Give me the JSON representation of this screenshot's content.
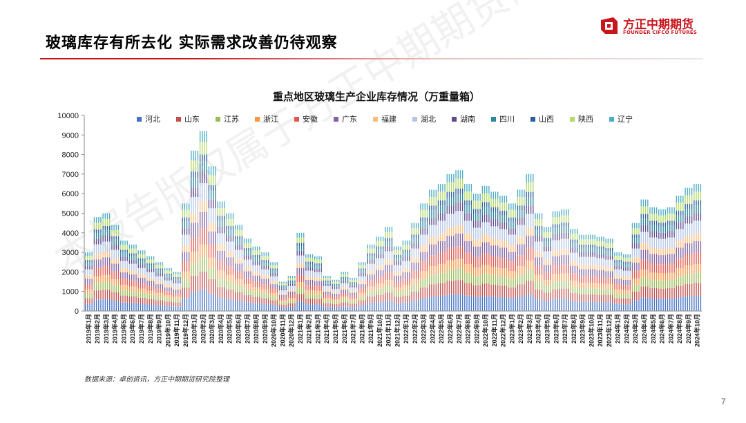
{
  "slide": {
    "title": "玻璃库存有所去化 实际需求改善仍待观察",
    "page_number": "7",
    "source": "数据来源：卓创资讯，方正中期期货研究院整理",
    "watermark": "本报告版权属于方正中期期货研究院所有"
  },
  "logo": {
    "name": "方正中期期货",
    "subtitle": "FOUNDER CIFCO FUTURES",
    "color": "#c8161d"
  },
  "chart_data": {
    "type": "bar",
    "stacked": true,
    "title": "重点地区玻璃生产企业库存情况（万重量箱）",
    "ylim": [
      0,
      10000
    ],
    "yticks": [
      0,
      1000,
      2000,
      3000,
      4000,
      5000,
      6000,
      7000,
      8000,
      9000,
      10000
    ],
    "legend_position": "top",
    "grid": false,
    "categories": [
      "2019年1月",
      "2019年2月",
      "2019年3月",
      "2019年4月",
      "2019年5月",
      "2019年6月",
      "2019年7月",
      "2019年8月",
      "2019年9月",
      "2019年10月",
      "2019年11月",
      "2019年12月",
      "2020年1月",
      "2020年2月",
      "2020年3月",
      "2020年4月",
      "2020年5月",
      "2020年6月",
      "2020年7月",
      "2020年8月",
      "2020年9月",
      "2020年10月",
      "2020年11月",
      "2020年12月",
      "2021年1月",
      "2021年2月",
      "2021年3月",
      "2021年4月",
      "2021年5月",
      "2021年6月",
      "2021年7月",
      "2021年8月",
      "2021年9月",
      "2021年10月",
      "2021年11月",
      "2021年12月",
      "2022年1月",
      "2022年2月",
      "2022年3月",
      "2022年4月",
      "2022年5月",
      "2022年6月",
      "2022年7月",
      "2022年8月",
      "2022年9月",
      "2022年10月",
      "2022年11月",
      "2022年12月",
      "2023年1月",
      "2023年2月",
      "2023年3月",
      "2023年4月",
      "2023年5月",
      "2023年6月",
      "2023年7月",
      "2023年8月",
      "2023年9月",
      "2023年10月",
      "2023年11月",
      "2023年12月",
      "2024年1月",
      "2024年2月",
      "2024年3月",
      "2024年4月",
      "2024年5月",
      "2024年6月",
      "2024年7月",
      "2024年8月",
      "2024年9月",
      "2024年10月"
    ],
    "tick_labels": [
      "2019年1月",
      "2019年2月",
      "2019年3月",
      "2019年4月",
      "2019年5月",
      "2019年6月",
      "2019年7月",
      "2019年8月",
      "2019年9月",
      "2019年10月",
      "2019年11月",
      "2019年12月",
      "2020年1月",
      "2020年2月",
      "2020年3月",
      "2020年4月",
      "2020年5月",
      "2020年6月",
      "2020年7月",
      "2020年8月",
      "2020年9月",
      "2020年10月",
      "2020年11月",
      "2020年12月",
      "2021年1月",
      "2021年2月",
      "2021年3月",
      "2021年4月",
      "2021年5月",
      "2021年6月",
      "2021年7月",
      "2021年8月",
      "2021年9月",
      "2021年10月",
      "2021年11月",
      "2021年12月",
      "2022年1月",
      "2022年2月",
      "2022年3月",
      "2022年4月",
      "2022年5月",
      "2022年6月",
      "2022年7月",
      "2022年8月",
      "2022年9月",
      "2022年10月",
      "2022年11月",
      "2022年12月",
      "2023年1月",
      "2023年2月",
      "2023年3月",
      "2023年4月",
      "2023年5月",
      "2023年6月",
      "2023年7月",
      "2023年8月",
      "2023年9月",
      "2023年10月",
      "2023年11月",
      "2023年12月",
      "2024年1月",
      "2024年2月",
      "2024年3月",
      "2024年4月",
      "2024年5月",
      "2024年6月",
      "2024年7月",
      "2024年8月",
      "2024年9月",
      "2024年10月"
    ],
    "totals": [
      3000,
      4800,
      5000,
      4400,
      3600,
      3400,
      3100,
      2800,
      2500,
      2200,
      2000,
      5500,
      8200,
      9200,
      7400,
      5600,
      5000,
      4400,
      3700,
      3300,
      3000,
      2500,
      1500,
      1800,
      4000,
      2900,
      2800,
      1800,
      1600,
      2000,
      1700,
      2500,
      3400,
      3800,
      4300,
      3300,
      3600,
      4500,
      5500,
      6200,
      6500,
      7000,
      7200,
      6500,
      6000,
      6400,
      6100,
      5900,
      5500,
      6200,
      7000,
      5000,
      4300,
      5100,
      5200,
      4200,
      3900,
      3900,
      3800,
      3700,
      3000,
      2900,
      4500,
      5700,
      5300,
      5200,
      5300,
      5900,
      6300,
      6500
    ],
    "series": [
      {
        "name": "河北",
        "color": "#4472c4",
        "share": [
          0.12,
          0.12,
          0.12,
          0.12,
          0.12,
          0.12,
          0.12,
          0.12,
          0.12,
          0.12,
          0.12,
          0.12,
          0.12,
          0.12,
          0.12,
          0.12,
          0.12,
          0.12,
          0.12,
          0.12,
          0.12,
          0.12,
          0.12,
          0.12,
          0.12,
          0.12,
          0.12,
          0.12,
          0.12,
          0.12,
          0.12,
          0.12,
          0.12,
          0.12,
          0.12,
          0.12,
          0.12,
          0.12,
          0.12,
          0.12,
          0.12,
          0.12,
          0.12,
          0.12,
          0.12,
          0.12,
          0.12,
          0.12,
          0.12,
          0.12,
          0.12,
          0.12,
          0.12,
          0.12,
          0.12,
          0.12,
          0.12,
          0.12,
          0.12,
          0.12,
          0.12,
          0.12,
          0.12,
          0.12,
          0.12,
          0.12,
          0.12,
          0.12,
          0.12,
          0.12
        ]
      },
      {
        "name": "山东",
        "color": "#c0504d",
        "share": [
          0.1,
          0.1,
          0.1,
          0.1,
          0.1,
          0.1,
          0.1,
          0.1,
          0.1,
          0.1,
          0.1,
          0.1,
          0.1,
          0.1,
          0.1,
          0.1,
          0.1,
          0.1,
          0.1,
          0.1,
          0.1,
          0.1,
          0.1,
          0.1,
          0.1,
          0.1,
          0.1,
          0.1,
          0.1,
          0.1,
          0.1,
          0.1,
          0.1,
          0.1,
          0.1,
          0.1,
          0.1,
          0.1,
          0.1,
          0.1,
          0.1,
          0.1,
          0.1,
          0.1,
          0.1,
          0.1,
          0.1,
          0.1,
          0.1,
          0.1,
          0.1,
          0.1,
          0.1,
          0.1,
          0.1,
          0.1,
          0.1,
          0.1,
          0.1,
          0.1,
          0.1,
          0.1,
          0.1,
          0.1,
          0.1,
          0.1,
          0.1,
          0.1,
          0.1,
          0.1
        ]
      },
      {
        "name": "江苏",
        "color": "#9bbb59",
        "share": [
          0.08,
          0.08,
          0.08,
          0.08,
          0.08,
          0.08,
          0.08,
          0.08,
          0.08,
          0.08,
          0.08,
          0.08,
          0.08,
          0.08,
          0.08,
          0.08,
          0.08,
          0.08,
          0.08,
          0.08,
          0.08,
          0.08,
          0.08,
          0.08,
          0.08,
          0.08,
          0.08,
          0.08,
          0.08,
          0.08,
          0.08,
          0.08,
          0.08,
          0.08,
          0.08,
          0.08,
          0.08,
          0.08,
          0.08,
          0.08,
          0.08,
          0.08,
          0.08,
          0.08,
          0.08,
          0.08,
          0.08,
          0.08,
          0.08,
          0.08,
          0.08,
          0.08,
          0.08,
          0.08,
          0.08,
          0.08,
          0.08,
          0.08,
          0.08,
          0.08,
          0.08,
          0.08,
          0.08,
          0.08,
          0.08,
          0.08,
          0.08,
          0.08,
          0.08,
          0.08
        ]
      },
      {
        "name": "浙江",
        "color": "#f79646",
        "share": [
          0.07,
          0.07,
          0.07,
          0.07,
          0.07,
          0.07,
          0.07,
          0.07,
          0.07,
          0.07,
          0.07,
          0.07,
          0.07,
          0.07,
          0.07,
          0.07,
          0.07,
          0.07,
          0.07,
          0.07,
          0.07,
          0.07,
          0.07,
          0.07,
          0.07,
          0.07,
          0.07,
          0.07,
          0.07,
          0.07,
          0.07,
          0.07,
          0.07,
          0.07,
          0.07,
          0.07,
          0.07,
          0.07,
          0.07,
          0.07,
          0.07,
          0.07,
          0.07,
          0.07,
          0.07,
          0.07,
          0.07,
          0.07,
          0.07,
          0.07,
          0.07,
          0.07,
          0.07,
          0.07,
          0.07,
          0.07,
          0.07,
          0.07,
          0.07,
          0.07,
          0.07,
          0.07,
          0.07,
          0.07,
          0.07,
          0.07,
          0.07,
          0.07,
          0.07,
          0.07
        ]
      },
      {
        "name": "安徽",
        "color": "#e0584e",
        "share": [
          0.09,
          0.09,
          0.09,
          0.09,
          0.09,
          0.09,
          0.09,
          0.09,
          0.09,
          0.09,
          0.09,
          0.09,
          0.09,
          0.09,
          0.09,
          0.09,
          0.09,
          0.09,
          0.09,
          0.09,
          0.09,
          0.09,
          0.09,
          0.09,
          0.09,
          0.09,
          0.09,
          0.09,
          0.09,
          0.09,
          0.09,
          0.09,
          0.09,
          0.09,
          0.09,
          0.09,
          0.09,
          0.09,
          0.09,
          0.09,
          0.09,
          0.09,
          0.09,
          0.09,
          0.09,
          0.09,
          0.09,
          0.09,
          0.09,
          0.09,
          0.09,
          0.09,
          0.09,
          0.09,
          0.09,
          0.09,
          0.09,
          0.09,
          0.09,
          0.09,
          0.09,
          0.09,
          0.09,
          0.09,
          0.09,
          0.09,
          0.09,
          0.09,
          0.09,
          0.09
        ]
      },
      {
        "name": "广东",
        "color": "#8064a2",
        "share": [
          0.09,
          0.09,
          0.09,
          0.09,
          0.09,
          0.09,
          0.09,
          0.09,
          0.09,
          0.09,
          0.09,
          0.09,
          0.09,
          0.09,
          0.09,
          0.09,
          0.09,
          0.09,
          0.09,
          0.09,
          0.09,
          0.09,
          0.09,
          0.09,
          0.09,
          0.09,
          0.09,
          0.09,
          0.09,
          0.09,
          0.09,
          0.09,
          0.09,
          0.09,
          0.09,
          0.09,
          0.09,
          0.09,
          0.09,
          0.09,
          0.09,
          0.09,
          0.09,
          0.09,
          0.09,
          0.09,
          0.09,
          0.09,
          0.09,
          0.09,
          0.09,
          0.09,
          0.09,
          0.09,
          0.09,
          0.09,
          0.09,
          0.09,
          0.09,
          0.09,
          0.09,
          0.09,
          0.09,
          0.09,
          0.09,
          0.09,
          0.09,
          0.09,
          0.09,
          0.09
        ]
      },
      {
        "name": "福建",
        "color": "#fbbd7e",
        "share": [
          0.06,
          0.06,
          0.06,
          0.06,
          0.06,
          0.06,
          0.06,
          0.06,
          0.06,
          0.06,
          0.06,
          0.06,
          0.06,
          0.06,
          0.06,
          0.06,
          0.06,
          0.06,
          0.06,
          0.06,
          0.06,
          0.06,
          0.06,
          0.06,
          0.06,
          0.06,
          0.06,
          0.06,
          0.06,
          0.06,
          0.06,
          0.06,
          0.06,
          0.06,
          0.06,
          0.06,
          0.06,
          0.06,
          0.06,
          0.06,
          0.06,
          0.06,
          0.06,
          0.06,
          0.06,
          0.06,
          0.06,
          0.06,
          0.06,
          0.06,
          0.06,
          0.06,
          0.06,
          0.06,
          0.06,
          0.06,
          0.06,
          0.06,
          0.06,
          0.06,
          0.06,
          0.06,
          0.06,
          0.06,
          0.06,
          0.06,
          0.06,
          0.06,
          0.06,
          0.06
        ]
      },
      {
        "name": "湖北",
        "color": "#b4c6e7",
        "share": [
          0.1,
          0.1,
          0.1,
          0.1,
          0.1,
          0.1,
          0.1,
          0.1,
          0.1,
          0.1,
          0.1,
          0.1,
          0.1,
          0.1,
          0.1,
          0.1,
          0.1,
          0.1,
          0.1,
          0.1,
          0.1,
          0.1,
          0.1,
          0.1,
          0.1,
          0.1,
          0.1,
          0.1,
          0.1,
          0.1,
          0.1,
          0.1,
          0.1,
          0.1,
          0.1,
          0.1,
          0.1,
          0.1,
          0.1,
          0.1,
          0.1,
          0.1,
          0.1,
          0.1,
          0.1,
          0.1,
          0.1,
          0.1,
          0.1,
          0.1,
          0.1,
          0.1,
          0.1,
          0.1,
          0.1,
          0.1,
          0.1,
          0.1,
          0.1,
          0.1,
          0.1,
          0.1,
          0.1,
          0.1,
          0.1,
          0.1,
          0.1,
          0.1,
          0.1,
          0.1
        ]
      },
      {
        "name": "湖南",
        "color": "#5f4b8b",
        "share": [
          0.06,
          0.06,
          0.06,
          0.06,
          0.06,
          0.06,
          0.06,
          0.06,
          0.06,
          0.06,
          0.06,
          0.06,
          0.06,
          0.06,
          0.06,
          0.06,
          0.06,
          0.06,
          0.06,
          0.06,
          0.06,
          0.06,
          0.06,
          0.06,
          0.06,
          0.06,
          0.06,
          0.06,
          0.06,
          0.06,
          0.06,
          0.06,
          0.06,
          0.06,
          0.06,
          0.06,
          0.06,
          0.06,
          0.06,
          0.06,
          0.06,
          0.06,
          0.06,
          0.06,
          0.06,
          0.06,
          0.06,
          0.06,
          0.06,
          0.06,
          0.06,
          0.06,
          0.06,
          0.06,
          0.06,
          0.06,
          0.06,
          0.06,
          0.06,
          0.06,
          0.06,
          0.06,
          0.06,
          0.06,
          0.06,
          0.06,
          0.06,
          0.06,
          0.06,
          0.06
        ]
      },
      {
        "name": "四川",
        "color": "#31859c",
        "share": [
          0.06,
          0.06,
          0.06,
          0.06,
          0.06,
          0.06,
          0.06,
          0.06,
          0.06,
          0.06,
          0.06,
          0.06,
          0.06,
          0.06,
          0.06,
          0.06,
          0.06,
          0.06,
          0.06,
          0.06,
          0.06,
          0.06,
          0.06,
          0.06,
          0.06,
          0.06,
          0.06,
          0.06,
          0.06,
          0.06,
          0.06,
          0.06,
          0.06,
          0.06,
          0.06,
          0.06,
          0.06,
          0.06,
          0.06,
          0.06,
          0.06,
          0.06,
          0.06,
          0.06,
          0.06,
          0.06,
          0.06,
          0.06,
          0.06,
          0.06,
          0.06,
          0.06,
          0.06,
          0.06,
          0.06,
          0.06,
          0.06,
          0.06,
          0.06,
          0.06,
          0.06,
          0.06,
          0.06,
          0.06,
          0.06,
          0.06,
          0.06,
          0.06,
          0.06,
          0.06
        ]
      },
      {
        "name": "山西",
        "color": "#2e5f9e",
        "share": [
          0.04,
          0.04,
          0.04,
          0.04,
          0.04,
          0.04,
          0.04,
          0.04,
          0.04,
          0.04,
          0.04,
          0.04,
          0.04,
          0.04,
          0.04,
          0.04,
          0.04,
          0.04,
          0.04,
          0.04,
          0.04,
          0.04,
          0.04,
          0.04,
          0.04,
          0.04,
          0.04,
          0.04,
          0.04,
          0.04,
          0.04,
          0.04,
          0.04,
          0.04,
          0.04,
          0.04,
          0.04,
          0.04,
          0.04,
          0.04,
          0.04,
          0.04,
          0.04,
          0.04,
          0.04,
          0.04,
          0.04,
          0.04,
          0.04,
          0.04,
          0.04,
          0.04,
          0.04,
          0.04,
          0.04,
          0.04,
          0.04,
          0.04,
          0.04,
          0.04,
          0.04,
          0.04,
          0.04,
          0.04,
          0.04,
          0.04,
          0.04,
          0.04,
          0.04,
          0.04
        ]
      },
      {
        "name": "陕西",
        "color": "#b5d96b",
        "share": [
          0.07,
          0.07,
          0.07,
          0.07,
          0.07,
          0.07,
          0.07,
          0.07,
          0.07,
          0.07,
          0.07,
          0.07,
          0.07,
          0.07,
          0.07,
          0.07,
          0.07,
          0.07,
          0.07,
          0.07,
          0.07,
          0.07,
          0.07,
          0.07,
          0.07,
          0.07,
          0.07,
          0.07,
          0.07,
          0.07,
          0.07,
          0.07,
          0.07,
          0.07,
          0.07,
          0.07,
          0.07,
          0.07,
          0.07,
          0.07,
          0.07,
          0.07,
          0.07,
          0.07,
          0.07,
          0.07,
          0.07,
          0.07,
          0.07,
          0.07,
          0.07,
          0.07,
          0.07,
          0.07,
          0.07,
          0.07,
          0.07,
          0.07,
          0.07,
          0.07,
          0.07,
          0.07,
          0.07,
          0.07,
          0.07,
          0.07,
          0.07,
          0.07,
          0.07,
          0.07
        ]
      },
      {
        "name": "辽宁",
        "color": "#4bacc6",
        "share": [
          0.06,
          0.06,
          0.06,
          0.06,
          0.06,
          0.06,
          0.06,
          0.06,
          0.06,
          0.06,
          0.06,
          0.06,
          0.06,
          0.06,
          0.06,
          0.06,
          0.06,
          0.06,
          0.06,
          0.06,
          0.06,
          0.06,
          0.06,
          0.06,
          0.06,
          0.06,
          0.06,
          0.06,
          0.06,
          0.06,
          0.06,
          0.06,
          0.06,
          0.06,
          0.06,
          0.06,
          0.06,
          0.06,
          0.06,
          0.06,
          0.06,
          0.06,
          0.06,
          0.06,
          0.06,
          0.06,
          0.06,
          0.06,
          0.06,
          0.06,
          0.06,
          0.06,
          0.06,
          0.06,
          0.06,
          0.06,
          0.06,
          0.06,
          0.06,
          0.06,
          0.06,
          0.06,
          0.06,
          0.06,
          0.06,
          0.06,
          0.06,
          0.06,
          0.06,
          0.06
        ]
      }
    ]
  }
}
